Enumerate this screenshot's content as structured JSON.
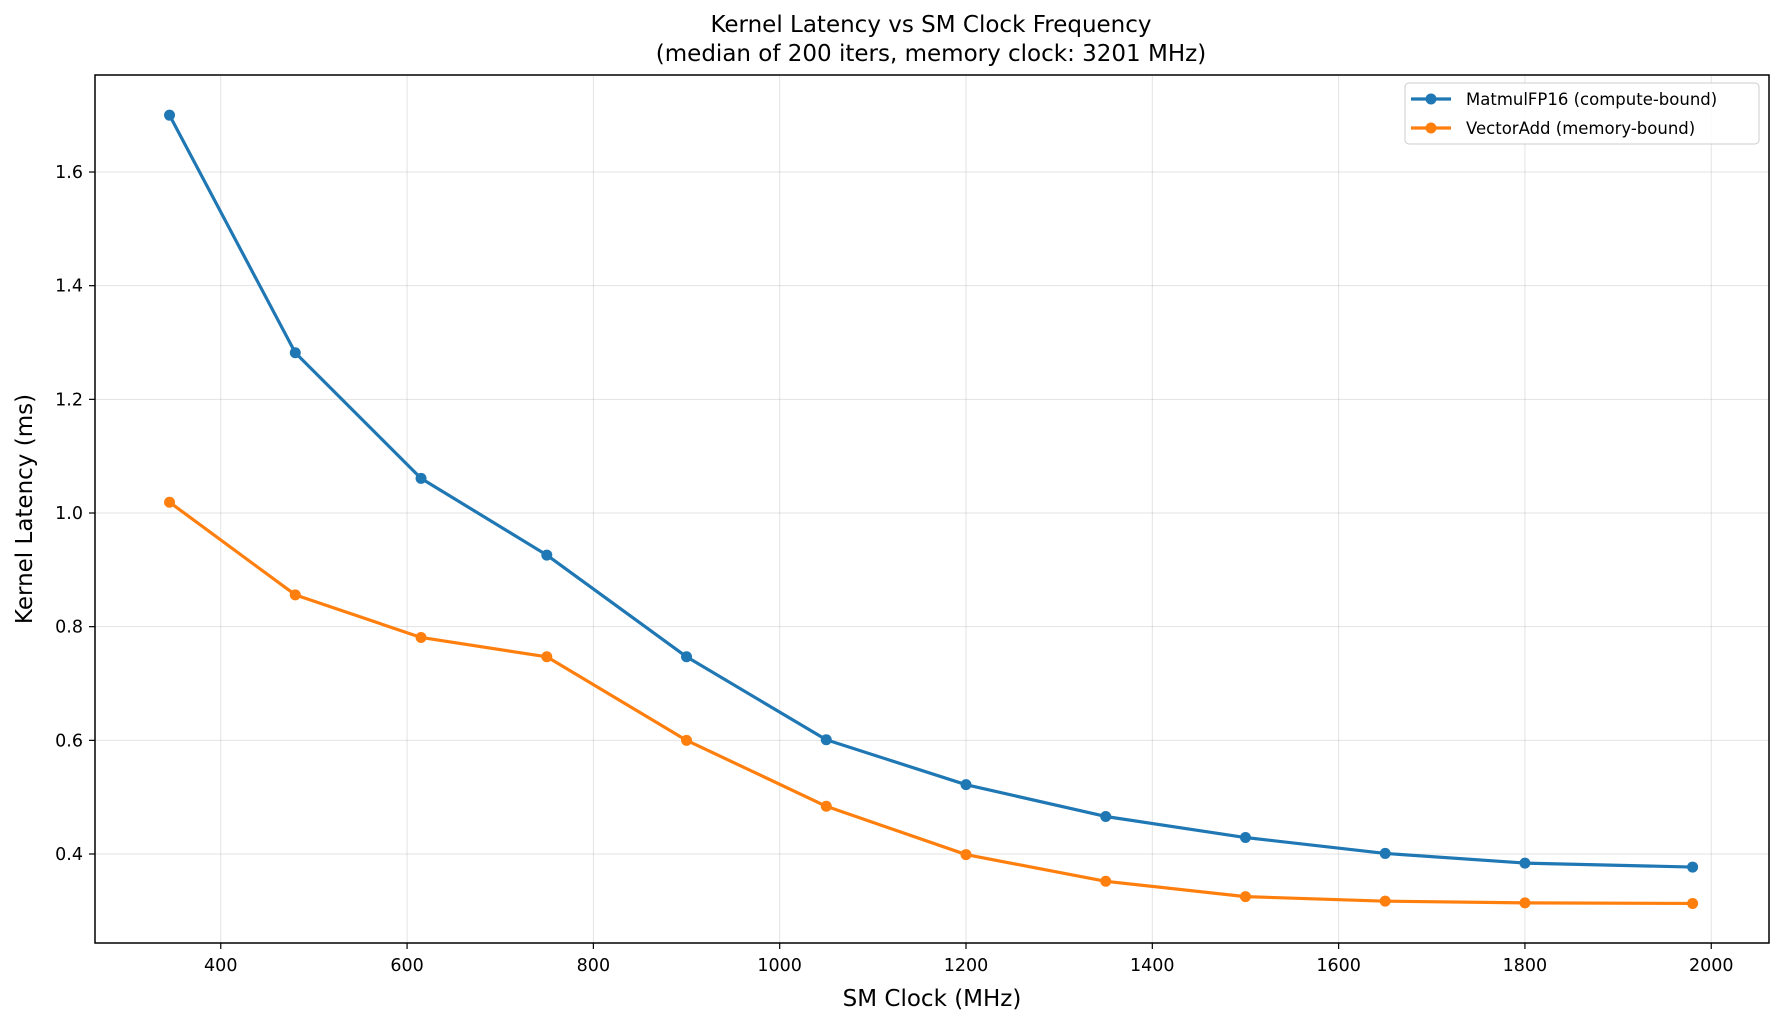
{
  "chart_data": {
    "type": "line",
    "title": "Kernel Latency vs SM Clock Frequency",
    "subtitle": "(median of 200 iters, memory clock: 3201 MHz)",
    "xlabel": "SM Clock (MHz)",
    "ylabel": "Kernel Latency (ms)",
    "xlim": [
      265,
      2062
    ],
    "ylim": [
      0.2434,
      1.7707
    ],
    "xticks": [
      400,
      600,
      800,
      1000,
      1200,
      1400,
      1600,
      1800,
      2000
    ],
    "xtick_labels": [
      "400",
      "600",
      "800",
      "1000",
      "1200",
      "1400",
      "1600",
      "1800",
      "2000"
    ],
    "yticks": [
      0.4,
      0.6,
      0.8,
      1.0,
      1.2,
      1.4,
      1.6
    ],
    "ytick_labels": [
      "0.4",
      "0.6",
      "0.8",
      "1.0",
      "1.2",
      "1.4",
      "1.6"
    ],
    "grid": true,
    "legend_position": "upper right",
    "series": [
      {
        "name": "MatmulFP16 (compute-bound)",
        "color": "#1f77b4",
        "marker": "circle",
        "x": [
          345,
          480,
          615,
          750,
          900,
          1050,
          1200,
          1350,
          1500,
          1650,
          1800,
          1980
        ],
        "values": [
          1.7,
          1.282,
          1.061,
          0.926,
          0.747,
          0.601,
          0.522,
          0.466,
          0.429,
          0.401,
          0.384,
          0.377
        ]
      },
      {
        "name": "VectorAdd (memory-bound)",
        "color": "#ff7f0e",
        "marker": "circle",
        "x": [
          345,
          480,
          615,
          750,
          900,
          1050,
          1200,
          1350,
          1500,
          1650,
          1800,
          1980
        ],
        "values": [
          1.019,
          0.856,
          0.781,
          0.747,
          0.6,
          0.484,
          0.399,
          0.352,
          0.325,
          0.317,
          0.314,
          0.313
        ]
      }
    ]
  }
}
